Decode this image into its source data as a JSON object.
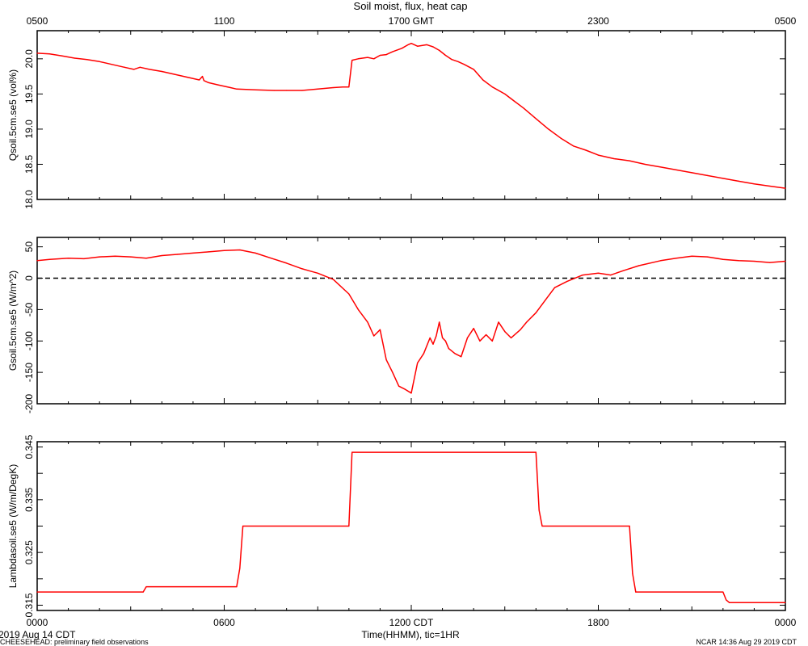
{
  "figure": {
    "title": "Soil moist, flux, heat cap",
    "top_axis_ticks": [
      "0500",
      "1100",
      "1700 GMT",
      "2300",
      "0500"
    ],
    "bottom_axis_ticks": [
      "0000",
      "0600",
      "1200 CDT",
      "1800",
      "0000"
    ],
    "xlabel": "Time(HHMM), tic=1HR",
    "date_text": "2019 Aug 14 CDT",
    "footer_left": "CHEESEHEAD: preliminary field observations",
    "footer_right": "NCAR 14:36 Aug 29 2019 CDT"
  },
  "colors": {
    "series": "#ff0000",
    "axes": "#000000",
    "zero_line": "#000000"
  },
  "chart_data": [
    {
      "type": "line",
      "ylabel": "Qsoil.5cm.se5 (vol%)",
      "ylim": [
        18.0,
        20.4
      ],
      "yticks": [
        18.0,
        18.5,
        19.0,
        19.5,
        20.0
      ],
      "ytick_labels": [
        "18.0",
        "18.5",
        "19.0",
        "19.5",
        "20.0"
      ],
      "x_hours": [
        0,
        0.4,
        0.8,
        1.2,
        1.6,
        2.0,
        2.4,
        2.8,
        3.1,
        3.3,
        3.6,
        4.0,
        4.4,
        4.8,
        5.2,
        5.3,
        5.35,
        5.5,
        5.8,
        6.2,
        6.4,
        7.0,
        7.6,
        8.0,
        8.5,
        9.0,
        9.5,
        9.8,
        10.0,
        10.1,
        10.3,
        10.6,
        10.8,
        11.0,
        11.2,
        11.4,
        11.7,
        11.9,
        12.0,
        12.2,
        12.5,
        12.7,
        12.9,
        13.1,
        13.3,
        13.5,
        13.7,
        14.0,
        14.3,
        14.6,
        15.0,
        15.3,
        15.6,
        16.0,
        16.4,
        16.8,
        17.2,
        17.6,
        18.0,
        18.5,
        19.0,
        19.5,
        20.0,
        20.5,
        21.0,
        21.5,
        22.0,
        22.5,
        23.0,
        23.5,
        24.0
      ],
      "values": [
        20.08,
        20.07,
        20.04,
        20.01,
        19.99,
        19.96,
        19.92,
        19.88,
        19.85,
        19.88,
        19.85,
        19.82,
        19.78,
        19.74,
        19.7,
        19.75,
        19.69,
        19.66,
        19.63,
        19.59,
        19.57,
        19.56,
        19.55,
        19.55,
        19.55,
        19.57,
        19.59,
        19.6,
        19.6,
        19.98,
        20.0,
        20.02,
        20.0,
        20.05,
        20.06,
        20.1,
        20.15,
        20.2,
        20.22,
        20.18,
        20.2,
        20.17,
        20.12,
        20.05,
        19.99,
        19.96,
        19.92,
        19.85,
        19.7,
        19.6,
        19.5,
        19.4,
        19.3,
        19.15,
        19.0,
        18.87,
        18.76,
        18.7,
        18.63,
        18.58,
        18.55,
        18.5,
        18.46,
        18.42,
        18.38,
        18.34,
        18.3,
        18.26,
        18.22,
        18.19,
        18.16
      ],
      "hlines": []
    },
    {
      "type": "line",
      "ylabel": "Gsoil.5cm.se5 (W/m^2)",
      "ylim": [
        -200,
        65
      ],
      "yticks": [
        -200,
        -150,
        -100,
        -50,
        0,
        50
      ],
      "ytick_labels": [
        "-200",
        "-150",
        "-100",
        "-50",
        "0",
        "50"
      ],
      "x_hours": [
        0,
        0.4,
        1.0,
        1.5,
        2.0,
        2.5,
        3.0,
        3.5,
        4.0,
        4.5,
        5.0,
        5.5,
        6.0,
        6.5,
        7.0,
        7.5,
        8.0,
        8.5,
        9.0,
        9.5,
        10.0,
        10.3,
        10.6,
        10.8,
        11.0,
        11.2,
        11.4,
        11.6,
        11.8,
        12.0,
        12.2,
        12.4,
        12.6,
        12.7,
        12.8,
        12.9,
        13.0,
        13.1,
        13.2,
        13.4,
        13.6,
        13.8,
        14.0,
        14.2,
        14.4,
        14.6,
        14.8,
        15.0,
        15.2,
        15.5,
        15.7,
        16.0,
        16.3,
        16.6,
        17.0,
        17.5,
        18.0,
        18.4,
        18.8,
        19.3,
        20.0,
        20.5,
        21.0,
        21.5,
        22.0,
        22.5,
        23.0,
        23.5,
        24.0
      ],
      "values": [
        28,
        30,
        32,
        31,
        34,
        35,
        34,
        32,
        36,
        38,
        40,
        42,
        44,
        45,
        40,
        32,
        24,
        15,
        8,
        -2,
        -25,
        -50,
        -70,
        -92,
        -82,
        -130,
        -150,
        -172,
        -177,
        -183,
        -135,
        -120,
        -95,
        -105,
        -92,
        -70,
        -95,
        -100,
        -112,
        -120,
        -125,
        -95,
        -80,
        -100,
        -90,
        -100,
        -70,
        -85,
        -95,
        -82,
        -70,
        -55,
        -35,
        -15,
        -5,
        5,
        8,
        5,
        12,
        20,
        28,
        32,
        35,
        34,
        30,
        28,
        27,
        25,
        27
      ],
      "hlines": [
        0
      ]
    },
    {
      "type": "line",
      "ylabel": "Lambdasoil.se5 (W/m/DegK)",
      "ylim": [
        0.314,
        0.346
      ],
      "yticks": [
        0.315,
        0.32,
        0.325,
        0.33,
        0.335,
        0.34,
        0.345
      ],
      "ytick_labels": [
        "0.315",
        "",
        "0.325",
        "",
        "0.335",
        "",
        "0.345"
      ],
      "x_hours": [
        0,
        3.4,
        3.5,
        6.4,
        6.5,
        6.6,
        10.0,
        10.1,
        16.0,
        16.1,
        16.2,
        19.0,
        19.1,
        19.2,
        22.0,
        22.1,
        22.2,
        24.0
      ],
      "values": [
        0.3175,
        0.3175,
        0.3185,
        0.3185,
        0.322,
        0.33,
        0.33,
        0.344,
        0.344,
        0.333,
        0.33,
        0.33,
        0.321,
        0.3175,
        0.3175,
        0.316,
        0.3155,
        0.3155
      ],
      "hlines": []
    }
  ]
}
